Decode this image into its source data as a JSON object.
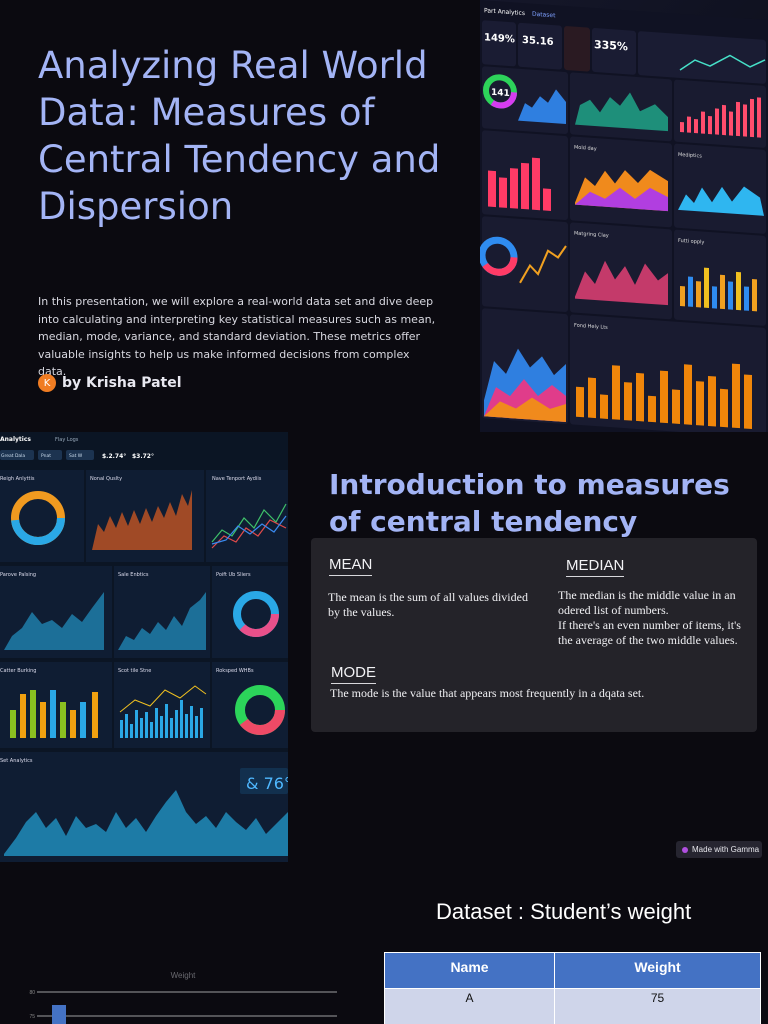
{
  "slide1": {
    "title": "Analyzing Real World Data: Measures of Central Tendency and Dispersion",
    "body": "In this presentation, we will explore a real-world data set and dive deep into calculating and interpreting key statistical measures such as mean, median, mode, variance, and standard deviation. These metrics offer valuable insights to help us make informed decisions from complex data.",
    "author_initial": "K",
    "author": "by Krisha Patel",
    "dashboard_image": {
      "tabs": [
        "Part Analytics",
        "Dataset"
      ],
      "kpis": [
        "149%",
        "35.16",
        "335%",
        "141"
      ],
      "panels": [
        "Mold day",
        "Mediptics",
        "Matgring Clay",
        "Futti opply",
        "Fond Hely Lts"
      ]
    }
  },
  "slide2": {
    "title": "Introduction to measures of central tendency",
    "mean_label": "MEAN",
    "mean_text": "The mean is the sum of all values divided by the values.",
    "median_label": "MEDIAN",
    "median_text": "The median is the middle value in an odered list of numbers.\nIf there's an even number of items,  it's the average of the two middle values.",
    "mode_label": "MODE",
    "mode_text": "The mode is the value that appears most frequently in a dqata set.",
    "badge": "Made with Gamma",
    "dashboard_image": {
      "app_title": "Analytics",
      "tab": "Flay Logs",
      "filters": [
        "Great Dala",
        "Pnat",
        "Sat W"
      ],
      "stats": [
        "$.2.74°",
        "$3.72°"
      ],
      "panels": [
        "Reigh Anlyttis",
        "Nonal Quslty",
        "Nave Tenport Aydiis",
        "Parove Palsing",
        "Sale Enbtics",
        "Poift Ub Sliers",
        "Catter Burking",
        "Scot tile Stne",
        "Roksped WHBs",
        "Set Analytics"
      ],
      "readout": "& 76°"
    }
  },
  "slide3": {
    "title": "Dataset : Student’s weight",
    "table": {
      "headers": [
        "Name",
        "Weight"
      ],
      "rows": [
        [
          "A",
          "75"
        ]
      ]
    },
    "chart_title": "Weight",
    "chart_ticks": [
      "80",
      "75"
    ]
  },
  "colors": {
    "background": "#0b0a10",
    "title_accent": "#a3b4f5",
    "card": "#242329",
    "table_header": "#4472c4",
    "table_cell": "#cfd5ea"
  }
}
